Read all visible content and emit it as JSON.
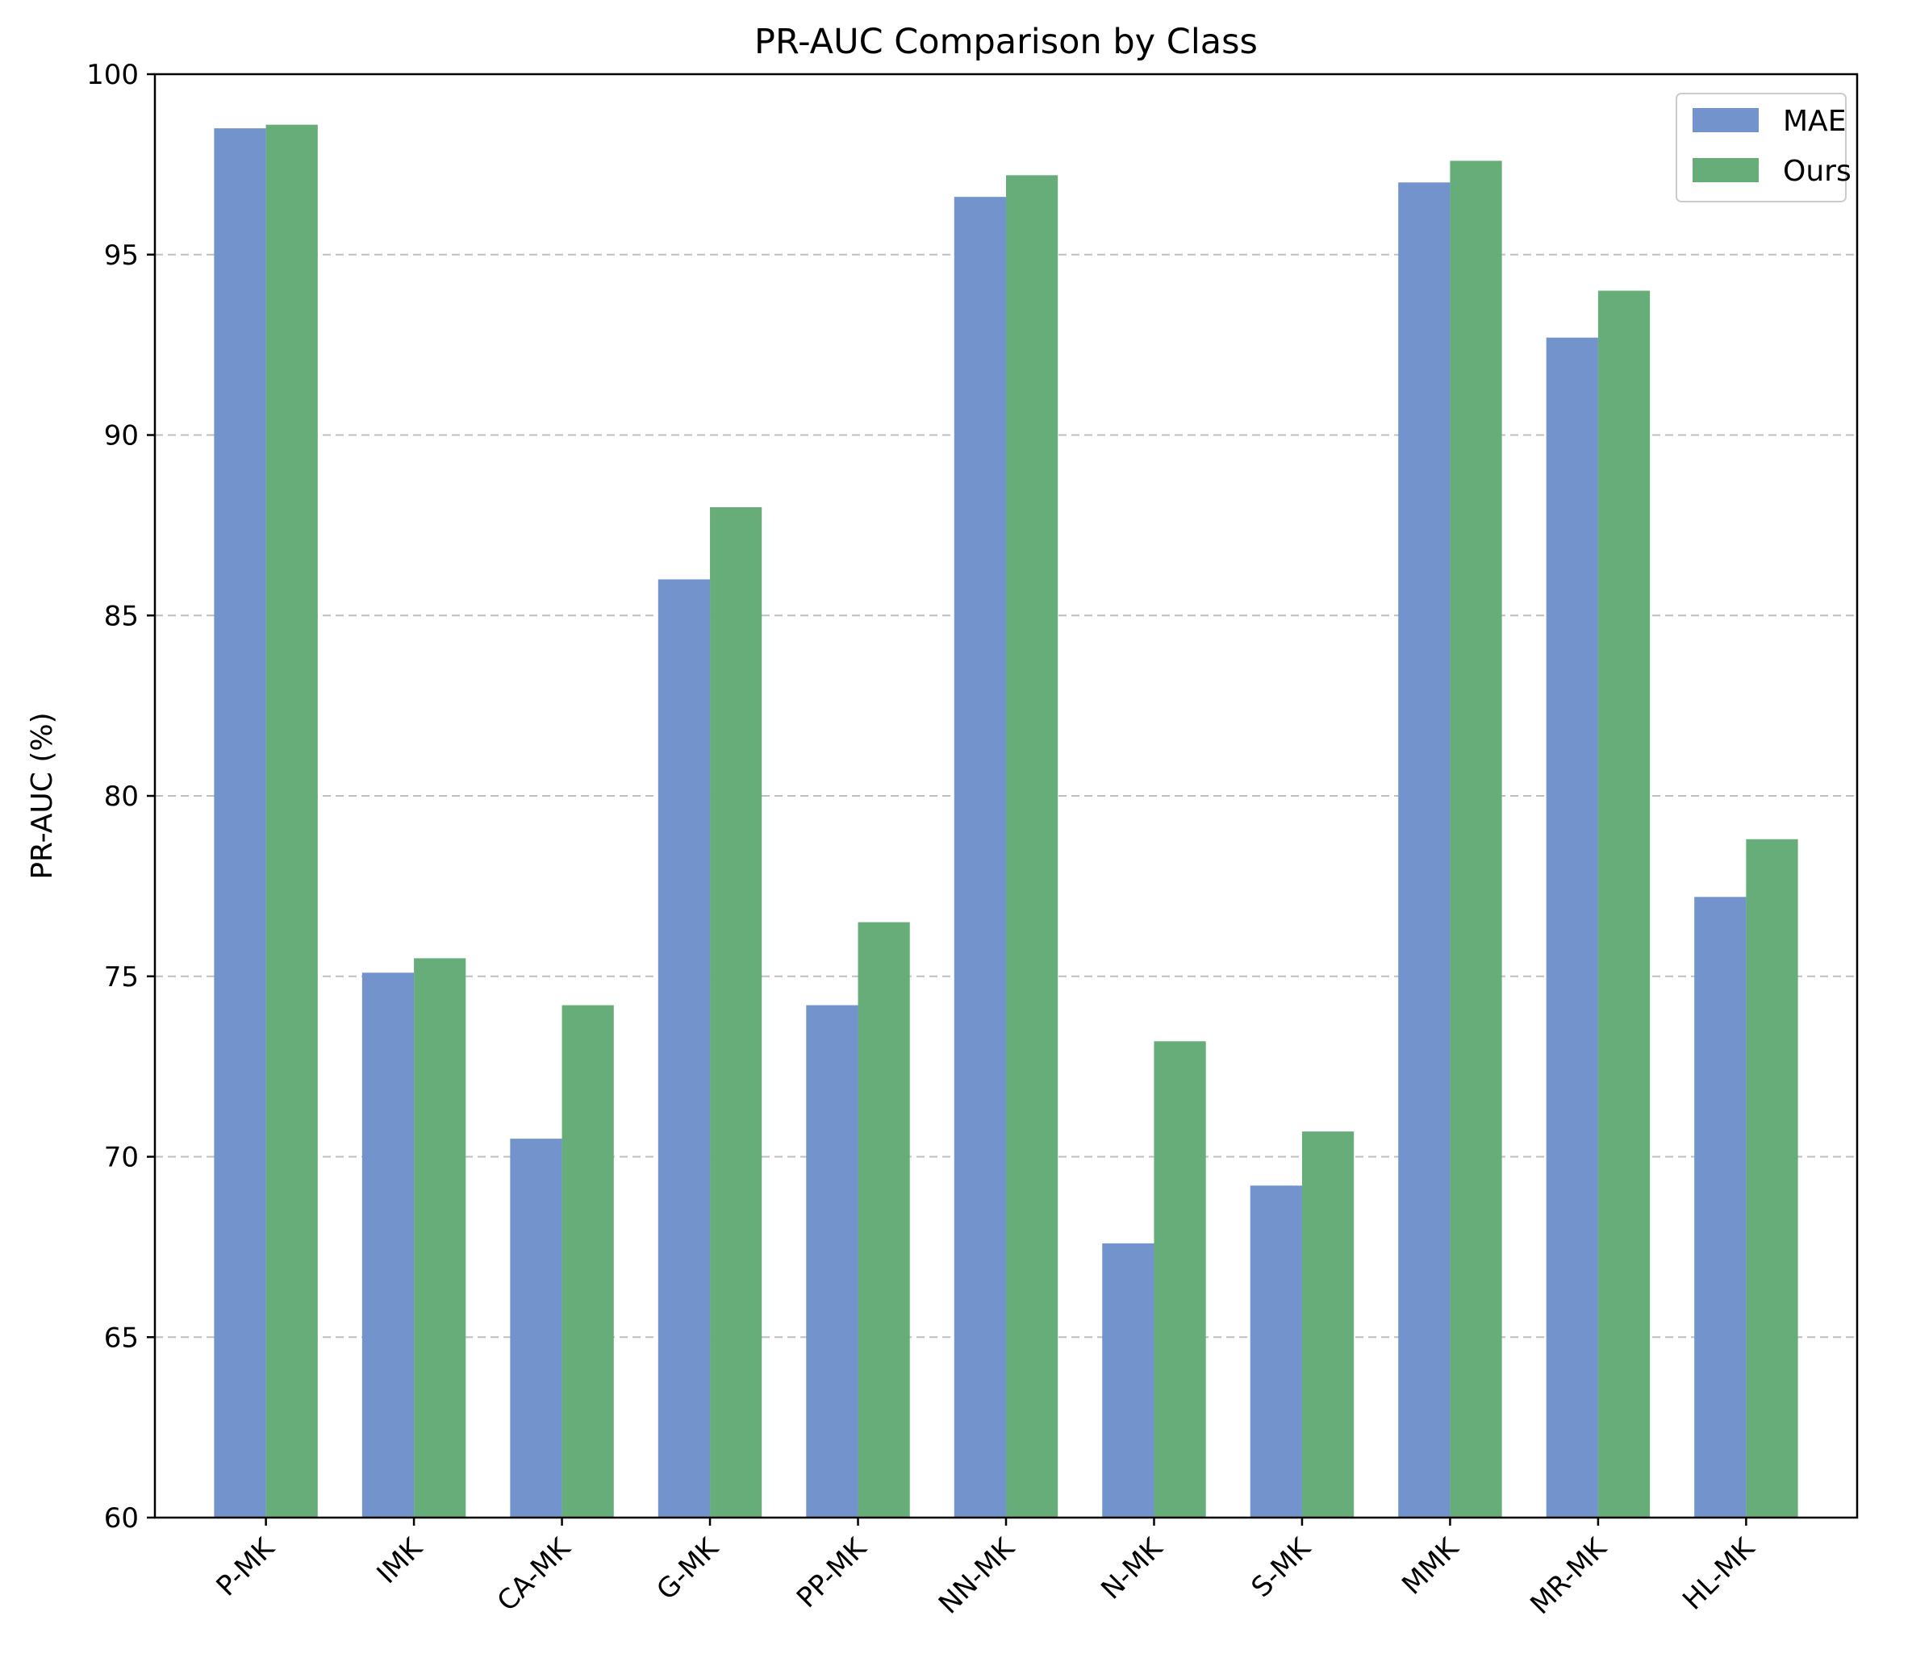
{
  "chart_data": {
    "type": "bar",
    "title": "PR-AUC Comparison by Class",
    "xlabel": "",
    "ylabel": "PR-AUC (%)",
    "ylim": [
      60,
      100
    ],
    "yticks": [
      60,
      65,
      70,
      75,
      80,
      85,
      90,
      95,
      100
    ],
    "grid": "y-axis dashed",
    "legend_position": "top-right",
    "categories": [
      "P-MK",
      "IMK",
      "CA-MK",
      "G-MK",
      "PP-MK",
      "NN-MK",
      "N-MK",
      "S-MK",
      "MMK",
      "MR-MK",
      "HL-MK"
    ],
    "series": [
      {
        "name": "MAE",
        "color": "#7293cb",
        "values": [
          98.5,
          75.1,
          70.5,
          86.0,
          74.2,
          96.6,
          67.6,
          69.2,
          97.0,
          92.7,
          77.2
        ]
      },
      {
        "name": "Ours",
        "color": "#67ad7a",
        "values": [
          98.6,
          75.5,
          74.2,
          88.0,
          76.5,
          97.2,
          73.2,
          70.7,
          97.6,
          94.0,
          78.8
        ]
      }
    ]
  }
}
